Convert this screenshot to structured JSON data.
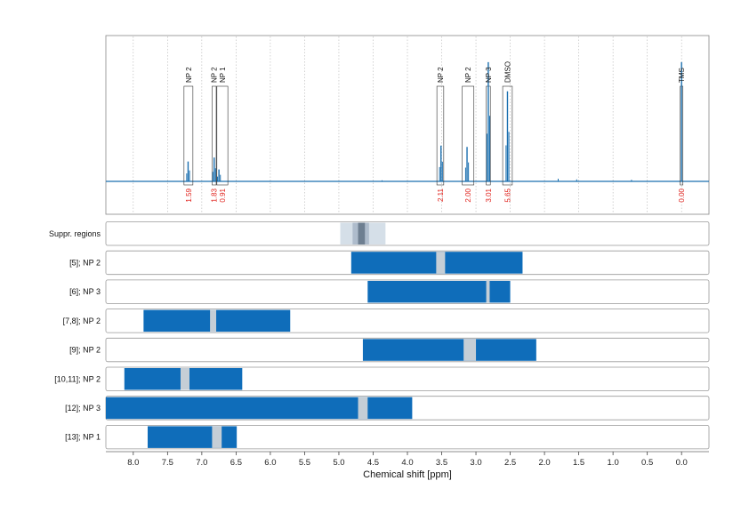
{
  "chart_data": {
    "type": "nmr_spectrum_with_ranges",
    "xlabel": "Chemical shift [ppm]",
    "x_reversed": true,
    "xlim": [
      8.4,
      -0.4
    ],
    "xticks": [
      "8.0",
      "7.5",
      "7.0",
      "6.5",
      "6.0",
      "5.5",
      "5.0",
      "4.5",
      "4.0",
      "3.5",
      "3.0",
      "2.5",
      "2.0",
      "1.5",
      "1.0",
      "0.5",
      "0.0"
    ],
    "grid": "vertical dotted",
    "colors": {
      "spectrum": "#1a6faf",
      "range_bar": "#0f6dba",
      "gap": "#c5ced6",
      "integral": "#e0211b",
      "suppr_light": "#d5dfe8",
      "suppr_mid": "#aebccc",
      "suppr_dark": "#6e7f91"
    },
    "peaks": [
      {
        "label": "NP 2",
        "shift": 7.2,
        "integral": "1.59",
        "box": [
          7.26,
          7.13
        ],
        "height": 0.15
      },
      {
        "label": "NP 2",
        "shift": 6.82,
        "integral": "1.83",
        "box": [
          6.85,
          6.79
        ],
        "height": 0.18
      },
      {
        "label": "NP 1",
        "shift": 6.75,
        "integral": "0.91",
        "box": [
          6.78,
          6.62
        ],
        "height": 0.09
      },
      {
        "label": "NP 2",
        "shift": 3.51,
        "integral": "2.11",
        "box": [
          3.57,
          3.47
        ],
        "height": 0.27
      },
      {
        "label": "NP 2",
        "shift": 3.13,
        "integral": "2.00",
        "box": [
          3.2,
          3.03
        ],
        "height": 0.26
      },
      {
        "label": "NP 3",
        "shift": 2.82,
        "integral": "3.01",
        "box": [
          2.85,
          2.79
        ],
        "height": 0.9
      },
      {
        "label": "DMSO",
        "shift": 2.54,
        "integral": "5.65",
        "box": [
          2.61,
          2.47
        ],
        "height": 0.68
      },
      {
        "label": "TMS",
        "shift": 0.0,
        "integral": "0.00",
        "box": [
          0.02,
          -0.02
        ],
        "height": 0.9
      }
    ],
    "suppr_regions": {
      "label": "Suppr. regions",
      "outer": [
        4.98,
        4.32
      ],
      "mid": [
        4.8,
        4.56
      ],
      "inner": [
        4.72,
        4.62
      ]
    },
    "ranges": [
      {
        "label": "[5]; NP 2",
        "bar": [
          4.82,
          2.32
        ],
        "gap": [
          3.58,
          3.45
        ]
      },
      {
        "label": "[6]; NP 3",
        "bar": [
          4.58,
          2.5
        ],
        "gap": [
          2.85,
          2.8
        ]
      },
      {
        "label": "[7,8]; NP 2",
        "bar": [
          7.85,
          5.71
        ],
        "gap": [
          6.88,
          6.79
        ]
      },
      {
        "label": "[9]; NP 2",
        "bar": [
          4.65,
          2.12
        ],
        "gap": [
          3.18,
          3.0
        ]
      },
      {
        "label": "[10,11]; NP 2",
        "bar": [
          8.13,
          6.41
        ],
        "gap": [
          7.31,
          7.18
        ]
      },
      {
        "label": "[12]; NP 3",
        "bar": [
          8.4,
          3.93
        ],
        "gap": [
          4.72,
          4.58
        ]
      },
      {
        "label": "[13]; NP 1",
        "bar": [
          7.79,
          6.49
        ],
        "gap": [
          6.85,
          6.71
        ]
      }
    ],
    "minor_peaks": [
      {
        "shift": 1.8,
        "height": 0.02
      },
      {
        "shift": 1.53,
        "height": 0.015
      },
      {
        "shift": 0.73,
        "height": 0.012
      },
      {
        "shift": 4.37,
        "height": 0.008
      }
    ]
  }
}
